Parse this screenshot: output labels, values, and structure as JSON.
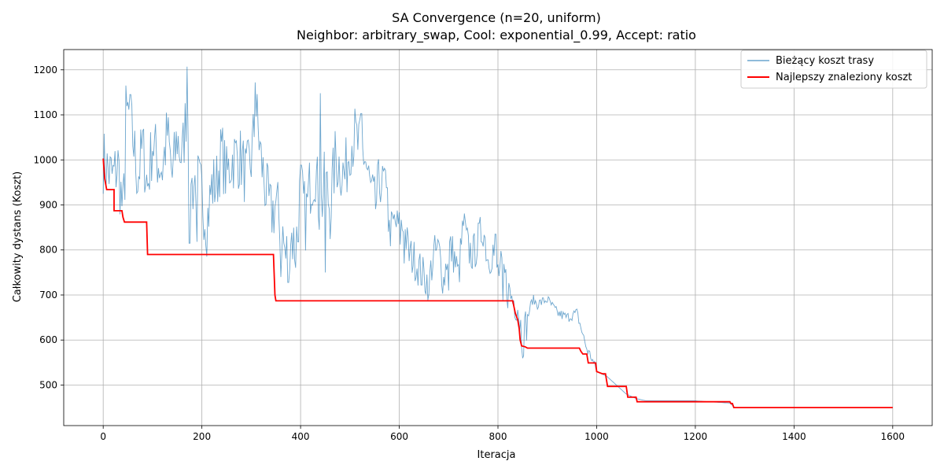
{
  "chart_data": {
    "type": "line",
    "title": [
      "SA Convergence (n=20, uniform)",
      "Neighbor: arbitrary_swap, Cool: exponential_0.99, Accept: ratio"
    ],
    "xlabel": "Iteracja",
    "ylabel": "Całkowity dystans (Koszt)",
    "xlim": [
      -80,
      1680
    ],
    "ylim": [
      410,
      1245
    ],
    "xticks": [
      0,
      200,
      400,
      600,
      800,
      1000,
      1200,
      1400,
      1600
    ],
    "yticks": [
      500,
      600,
      700,
      800,
      900,
      1000,
      1100,
      1200
    ],
    "grid": true,
    "legend": "top-right",
    "series": [
      {
        "name": "Bieżący koszt trasy",
        "color": "#1f77b4",
        "style": "thin-noisy",
        "keypoints": [
          [
            0,
            1000
          ],
          [
            10,
            975
          ],
          [
            20,
            960
          ],
          [
            30,
            990
          ],
          [
            40,
            880
          ],
          [
            50,
            1100
          ],
          [
            60,
            1050
          ],
          [
            70,
            960
          ],
          [
            80,
            1030
          ],
          [
            90,
            940
          ],
          [
            100,
            1040
          ],
          [
            110,
            1000
          ],
          [
            120,
            980
          ],
          [
            130,
            1060
          ],
          [
            140,
            960
          ],
          [
            150,
            1050
          ],
          [
            160,
            1000
          ],
          [
            170,
            1130
          ],
          [
            175,
            1060
          ],
          [
            180,
            940
          ],
          [
            190,
            960
          ],
          [
            200,
            920
          ],
          [
            210,
            860
          ],
          [
            220,
            940
          ],
          [
            230,
            950
          ],
          [
            240,
            1020
          ],
          [
            250,
            960
          ],
          [
            260,
            1000
          ],
          [
            270,
            1010
          ],
          [
            280,
            1000
          ],
          [
            290,
            960
          ],
          [
            300,
            1000
          ],
          [
            310,
            1110
          ],
          [
            320,
            1000
          ],
          [
            330,
            930
          ],
          [
            340,
            880
          ],
          [
            350,
            900
          ],
          [
            360,
            860
          ],
          [
            370,
            780
          ],
          [
            380,
            840
          ],
          [
            390,
            800
          ],
          [
            400,
            940
          ],
          [
            410,
            870
          ],
          [
            420,
            950
          ],
          [
            430,
            980
          ],
          [
            440,
            880
          ],
          [
            450,
            960
          ],
          [
            460,
            890
          ],
          [
            470,
            1000
          ],
          [
            480,
            990
          ],
          [
            490,
            960
          ],
          [
            500,
            1040
          ],
          [
            510,
            1050
          ],
          [
            520,
            1020
          ],
          [
            530,
            1010
          ],
          [
            540,
            940
          ],
          [
            550,
            890
          ],
          [
            560,
            940
          ],
          [
            570,
            960
          ],
          [
            580,
            840
          ],
          [
            590,
            860
          ],
          [
            600,
            850
          ],
          [
            610,
            850
          ],
          [
            620,
            790
          ],
          [
            630,
            780
          ],
          [
            640,
            760
          ],
          [
            650,
            740
          ],
          [
            660,
            730
          ],
          [
            670,
            790
          ],
          [
            680,
            800
          ],
          [
            690,
            730
          ],
          [
            700,
            810
          ],
          [
            710,
            790
          ],
          [
            720,
            740
          ],
          [
            730,
            860
          ],
          [
            740,
            800
          ],
          [
            750,
            790
          ],
          [
            760,
            820
          ],
          [
            770,
            850
          ],
          [
            780,
            780
          ],
          [
            790,
            800
          ],
          [
            800,
            750
          ],
          [
            810,
            760
          ],
          [
            820,
            710
          ],
          [
            830,
            690
          ],
          [
            840,
            680
          ],
          [
            850,
            600
          ],
          [
            860,
            650
          ],
          [
            870,
            690
          ],
          [
            880,
            680
          ],
          [
            900,
            690
          ],
          [
            920,
            660
          ],
          [
            940,
            650
          ],
          [
            960,
            660
          ],
          [
            970,
            620
          ],
          [
            980,
            580
          ],
          [
            990,
            560
          ],
          [
            1000,
            530
          ],
          [
            1020,
            520
          ],
          [
            1040,
            500
          ],
          [
            1060,
            480
          ],
          [
            1080,
            470
          ],
          [
            1100,
            465
          ],
          [
            1200,
            465
          ],
          [
            1270,
            460
          ],
          [
            1280,
            450
          ],
          [
            1600,
            450
          ]
        ],
        "peaks": [
          [
            46,
            1165
          ],
          [
            55,
            1145
          ],
          [
            170,
            1207
          ],
          [
            308,
            1172
          ],
          [
            440,
            1148
          ],
          [
            523,
            1103
          ],
          [
            575,
            938
          ],
          [
            602,
            812
          ],
          [
            795,
            835
          ]
        ],
        "troughs": [
          [
            175,
            815
          ],
          [
            190,
            818
          ],
          [
            360,
            740
          ],
          [
            375,
            728
          ],
          [
            395,
            818
          ],
          [
            450,
            750
          ],
          [
            610,
            770
          ],
          [
            660,
            702
          ],
          [
            700,
            710
          ],
          [
            810,
            688
          ]
        ]
      },
      {
        "name": "Najlepszy znaleziony koszt",
        "color": "#ff0000",
        "style": "step",
        "points": [
          [
            0,
            1003
          ],
          [
            3,
            958
          ],
          [
            7,
            934
          ],
          [
            22,
            934
          ],
          [
            22,
            887
          ],
          [
            38,
            887
          ],
          [
            40,
            873
          ],
          [
            43,
            862
          ],
          [
            88,
            862
          ],
          [
            90,
            790
          ],
          [
            345,
            790
          ],
          [
            348,
            700
          ],
          [
            350,
            687
          ],
          [
            830,
            687
          ],
          [
            835,
            660
          ],
          [
            840,
            645
          ],
          [
            843,
            625
          ],
          [
            845,
            600
          ],
          [
            848,
            587
          ],
          [
            855,
            585
          ],
          [
            860,
            582
          ],
          [
            965,
            582
          ],
          [
            968,
            575
          ],
          [
            972,
            569
          ],
          [
            980,
            569
          ],
          [
            983,
            549
          ],
          [
            998,
            549
          ],
          [
            1000,
            530
          ],
          [
            1012,
            525
          ],
          [
            1018,
            525
          ],
          [
            1022,
            497
          ],
          [
            1060,
            497
          ],
          [
            1063,
            473
          ],
          [
            1080,
            473
          ],
          [
            1082,
            463
          ],
          [
            1270,
            463
          ],
          [
            1272,
            459
          ],
          [
            1275,
            459
          ],
          [
            1278,
            450
          ],
          [
            1600,
            450
          ]
        ]
      }
    ]
  }
}
